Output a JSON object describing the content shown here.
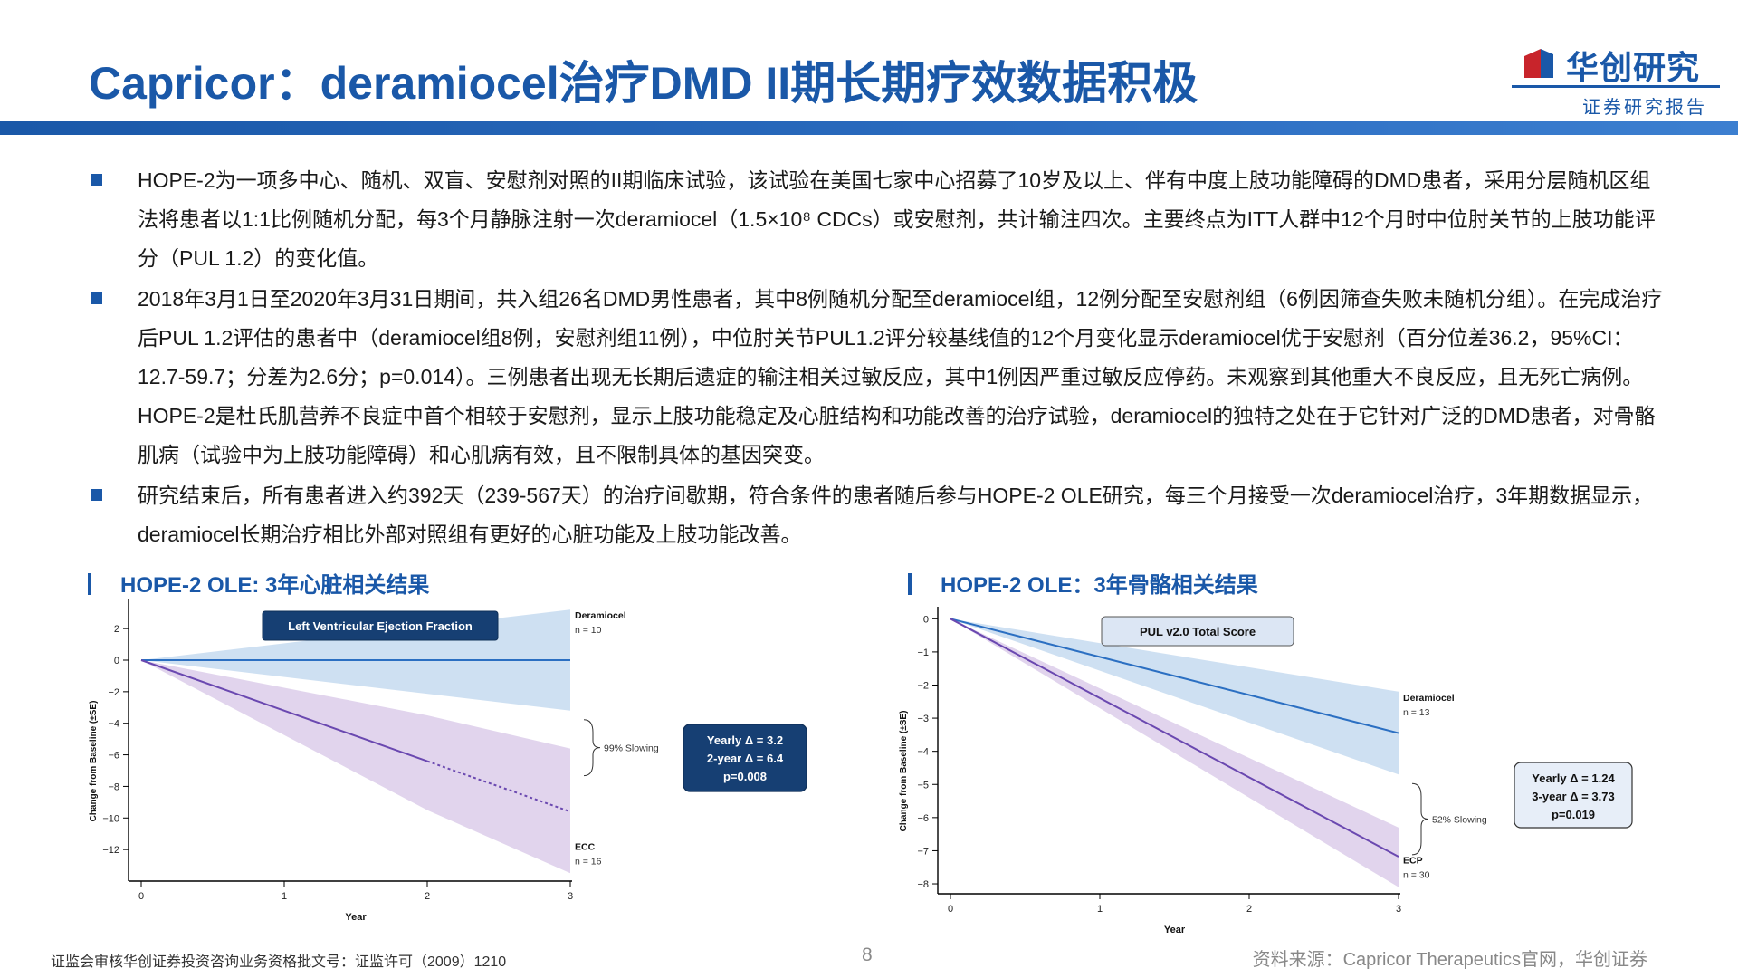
{
  "header": {
    "title": "Capricor：deramiocel治疗DMD II期长期疗效数据积极",
    "logo_name": "华创研究",
    "logo_sub": "证券研究报告"
  },
  "bullets": [
    "HOPE-2为一项多中心、随机、双盲、安慰剂对照的II期临床试验，该试验在美国七家中心招募了10岁及以上、伴有中度上肢功能障碍的DMD患者，采用分层随机区组法将患者以1:1比例随机分配，每3个月静脉注射一次deramiocel（1.5×10⁸ CDCs）或安慰剂，共计输注四次。主要终点为ITT人群中12个月时中位肘关节的上肢功能评分（PUL 1.2）的变化值。",
    "2018年3月1日至2020年3月31日期间，共入组26名DMD男性患者，其中8例随机分配至deramiocel组，12例分配至安慰剂组（6例因筛查失败未随机分组）。在完成治疗后PUL 1.2评估的患者中（deramiocel组8例，安慰剂组11例），中位肘关节PUL1.2评分较基线值的12个月变化显示deramiocel优于安慰剂（百分位差36.2，95%CI：12.7-59.7；分差为2.6分；p=0.014）。三例患者出现无长期后遗症的输注相关过敏反应，其中1例因严重过敏反应停药。未观察到其他重大不良反应，且无死亡病例。HOPE-2是杜氏肌营养不良症中首个相较于安慰剂，显示上肢功能稳定及心脏结构和功能改善的治疗试验，deramiocel的独特之处在于它针对广泛的DMD患者，对骨骼肌病（试验中为上肢功能障碍）和心肌病有效，且不限制具体的基因突变。",
    "研究结束后，所有患者进入约392天（239-567天）的治疗间歇期，符合条件的患者随后参与HOPE-2 OLE研究，每三个月接受一次deramiocel治疗，3年期数据显示， deramiocel长期治疗相比外部对照组有更好的心脏功能及上肢功能改善。"
  ],
  "sections": {
    "left": "HOPE-2 OLE: 3年心脏相关结果",
    "right": "HOPE-2 OLE：3年骨骼相关结果"
  },
  "footer": {
    "left": "证监会审核华创证券投资咨询业务资格批文号：证监许可（2009）1210",
    "page": "8",
    "right": "资料来源：Capricor Therapeutics官网，华创证券"
  },
  "colors": {
    "brand": "#1a58a8",
    "deramiocel_line": "#2b6fc2",
    "deramiocel_band": "#c5daf0",
    "control_line": "#6a48b0",
    "control_band": "#dccdea",
    "callout_bg": "#163f73"
  },
  "chart_data": [
    {
      "type": "line",
      "title": "Left Ventricular Ejection Fraction",
      "xlabel": "Year",
      "ylabel": "Change from Baseline (±SE)",
      "x_ticks": [
        0,
        1,
        2,
        3
      ],
      "y_ticks": [
        2,
        0,
        -2,
        -4,
        -6,
        -8,
        -10,
        -12
      ],
      "xlim": [
        0,
        3
      ],
      "ylim": [
        -14,
        3.5
      ],
      "series": [
        {
          "name": "Deramiocel",
          "n_label": "n = 10",
          "x": [
            0,
            3
          ],
          "y": [
            0,
            0
          ],
          "band_upper": [
            0,
            3.2
          ],
          "band_lower": [
            0,
            -3.2
          ],
          "style": "solid",
          "color": "#2b6fc2",
          "band_color": "#c5daf0"
        },
        {
          "name": "ECC",
          "n_label": "n = 16",
          "x": [
            0,
            2,
            3
          ],
          "y": [
            0,
            -6.4,
            -9.6
          ],
          "band_upper": [
            0,
            -3.5,
            -5.6
          ],
          "band_lower": [
            0,
            -9.5,
            -13.5
          ],
          "dashed_from_x": 2,
          "style": "solid",
          "color": "#6a48b0",
          "band_color": "#dccdea"
        }
      ],
      "annotations": {
        "slowing": "99% Slowing",
        "callout": [
          "Yearly Δ = 3.2",
          "2-year Δ = 6.4",
          "p=0.008"
        ]
      }
    },
    {
      "type": "line",
      "title": "PUL v2.0 Total Score",
      "xlabel": "Year",
      "ylabel": "Change from Baseline (±SE)",
      "x_ticks": [
        0,
        1,
        2,
        3
      ],
      "y_ticks": [
        0,
        -1,
        -2,
        -3,
        -4,
        -5,
        -6,
        -7,
        -8
      ],
      "xlim": [
        0,
        3
      ],
      "ylim": [
        -8.3,
        0.2
      ],
      "series": [
        {
          "name": "Deramiocel",
          "n_label": "n = 13",
          "x": [
            0,
            3
          ],
          "y": [
            0,
            -3.45
          ],
          "band_upper": [
            0,
            -2.2
          ],
          "band_lower": [
            0,
            -4.7
          ],
          "style": "solid",
          "color": "#2b6fc2",
          "band_color": "#c5daf0"
        },
        {
          "name": "ECP",
          "n_label": "n = 30",
          "x": [
            0,
            3
          ],
          "y": [
            0,
            -7.18
          ],
          "band_upper": [
            0,
            -6.3
          ],
          "band_lower": [
            0,
            -8.1
          ],
          "style": "solid",
          "color": "#6a48b0",
          "band_color": "#dccdea"
        }
      ],
      "annotations": {
        "slowing": "52% Slowing",
        "callout": [
          "Yearly Δ = 1.24",
          "3-year Δ = 3.73",
          "p=0.019"
        ]
      }
    }
  ]
}
